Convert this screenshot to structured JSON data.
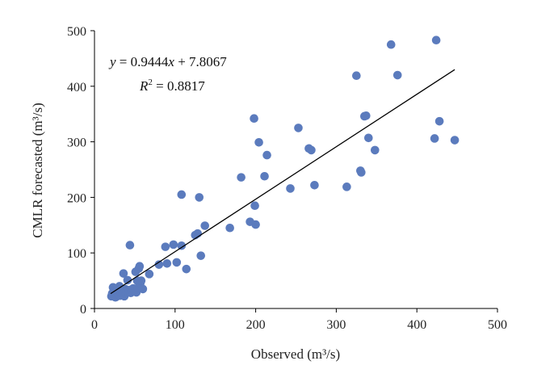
{
  "chart_data": {
    "type": "scatter",
    "xlabel": "Observed (m³/s)",
    "ylabel": "CMLR forecasted (m³/s)",
    "xlim": [
      0,
      500
    ],
    "ylim": [
      0,
      500
    ],
    "xticks": [
      "0",
      "100",
      "200",
      "300",
      "400",
      "500"
    ],
    "yticks": [
      "0",
      "100",
      "200",
      "300",
      "400",
      "500"
    ],
    "grid": false,
    "marker_color": "#5b7bbd",
    "trendline_color": "#000000",
    "equation": {
      "y_var": "y",
      "eq_rest": " = 0.9444",
      "x_var": "x",
      "eq_tail": " + 7.8067",
      "r2_var": "R",
      "r2_sup": "2",
      "r2_rest": " = 0.8817"
    },
    "trendline": {
      "slope": 0.9444,
      "intercept": 7.8067,
      "x_range": [
        20,
        447
      ]
    },
    "points": [
      [
        21,
        22
      ],
      [
        22,
        27
      ],
      [
        23,
        38
      ],
      [
        24,
        24
      ],
      [
        25,
        31
      ],
      [
        26,
        20
      ],
      [
        27,
        35
      ],
      [
        28,
        22
      ],
      [
        29,
        29
      ],
      [
        30,
        25
      ],
      [
        31,
        40
      ],
      [
        32,
        23
      ],
      [
        33,
        28
      ],
      [
        34,
        32
      ],
      [
        35,
        26
      ],
      [
        36,
        63
      ],
      [
        37,
        22
      ],
      [
        38,
        35
      ],
      [
        39,
        27
      ],
      [
        40,
        31
      ],
      [
        41,
        51
      ],
      [
        42,
        29
      ],
      [
        43,
        33
      ],
      [
        44,
        114
      ],
      [
        45,
        28
      ],
      [
        46,
        34
      ],
      [
        47,
        31
      ],
      [
        48,
        36
      ],
      [
        50,
        31
      ],
      [
        51,
        66
      ],
      [
        52,
        29
      ],
      [
        53,
        50
      ],
      [
        54,
        37
      ],
      [
        55,
        72
      ],
      [
        56,
        76
      ],
      [
        57,
        46
      ],
      [
        58,
        50
      ],
      [
        60,
        35
      ],
      [
        68,
        62
      ],
      [
        80,
        79
      ],
      [
        88,
        111
      ],
      [
        90,
        81
      ],
      [
        98,
        115
      ],
      [
        102,
        83
      ],
      [
        108,
        113
      ],
      [
        108,
        205
      ],
      [
        114,
        71
      ],
      [
        125,
        132
      ],
      [
        128,
        135
      ],
      [
        130,
        200
      ],
      [
        132,
        95
      ],
      [
        137,
        149
      ],
      [
        168,
        145
      ],
      [
        182,
        236
      ],
      [
        193,
        156
      ],
      [
        198,
        342
      ],
      [
        199,
        185
      ],
      [
        200,
        151
      ],
      [
        204,
        299
      ],
      [
        211,
        238
      ],
      [
        214,
        276
      ],
      [
        243,
        216
      ],
      [
        253,
        325
      ],
      [
        266,
        288
      ],
      [
        269,
        285
      ],
      [
        273,
        222
      ],
      [
        313,
        219
      ],
      [
        325,
        419
      ],
      [
        330,
        248
      ],
      [
        331,
        245
      ],
      [
        335,
        346
      ],
      [
        337,
        347
      ],
      [
        340,
        307
      ],
      [
        348,
        285
      ],
      [
        368,
        475
      ],
      [
        376,
        420
      ],
      [
        422,
        306
      ],
      [
        424,
        483
      ],
      [
        428,
        337
      ],
      [
        447,
        303
      ]
    ]
  }
}
